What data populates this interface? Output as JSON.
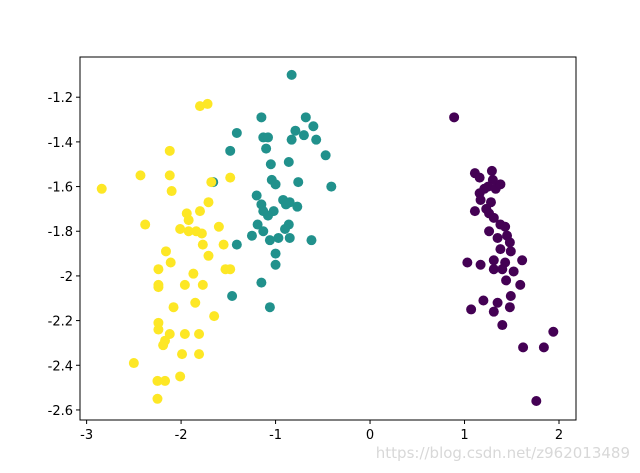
{
  "chart_data": {
    "type": "scatter",
    "xlim": [
      -3.07,
      2.18
    ],
    "ylim": [
      -2.645,
      -1.02
    ],
    "xticks": [
      -3,
      -2,
      -1,
      0,
      1,
      2
    ],
    "yticks": [
      -1.2,
      -1.4,
      -1.6,
      -1.8,
      -2.0,
      -2.2,
      -2.4,
      -2.6
    ],
    "watermark": "https://blog.csdn.net/z962013489",
    "series": [
      {
        "color": "#440154",
        "x": [
          0.89,
          1.11,
          1.16,
          1.29,
          1.3,
          1.21,
          1.25,
          1.33,
          1.16,
          1.38,
          1.17,
          1.28,
          1.11,
          1.23,
          1.26,
          1.31,
          1.38,
          1.43,
          1.26,
          1.35,
          1.45,
          1.48,
          1.38,
          1.49,
          1.31,
          1.03,
          1.17,
          1.43,
          1.61,
          1.31,
          1.4,
          1.52,
          1.44,
          1.59,
          1.49,
          1.2,
          1.35,
          1.48,
          1.07,
          1.31,
          1.4,
          1.94,
          1.62,
          1.84,
          1.76
        ],
        "y": [
          -1.29,
          -1.54,
          -1.56,
          -1.53,
          -1.57,
          -1.61,
          -1.6,
          -1.61,
          -1.63,
          -1.59,
          -1.66,
          -1.67,
          -1.71,
          -1.7,
          -1.72,
          -1.74,
          -1.77,
          -1.78,
          -1.8,
          -1.83,
          -1.82,
          -1.85,
          -1.88,
          -1.89,
          -1.93,
          -1.94,
          -1.95,
          -1.94,
          -1.93,
          -1.97,
          -1.97,
          -1.98,
          -2.02,
          -2.04,
          -2.09,
          -2.11,
          -2.12,
          -2.14,
          -2.15,
          -2.16,
          -2.22,
          -2.25,
          -2.32,
          -2.32,
          -2.56
        ]
      },
      {
        "color": "#21918c",
        "x": [
          -0.83,
          -0.68,
          -1.15,
          -0.6,
          -0.79,
          -0.7,
          -1.41,
          -0.57,
          -1.13,
          -1.08,
          -0.83,
          -1.48,
          -1.1,
          -0.47,
          -0.86,
          -1.05,
          -1.66,
          -1.04,
          -1.0,
          -0.76,
          -0.41,
          -1.2,
          -0.92,
          -0.85,
          -0.89,
          -0.77,
          -1.15,
          -1.13,
          -1.02,
          -1.08,
          -1.19,
          -0.86,
          -0.9,
          -1.13,
          -1.25,
          -0.97,
          -0.85,
          -0.62,
          -1.06,
          -1.41,
          -1.0,
          -1.0,
          -1.15,
          -1.46,
          -1.06
        ],
        "y": [
          -1.1,
          -1.29,
          -1.29,
          -1.33,
          -1.35,
          -1.37,
          -1.36,
          -1.39,
          -1.38,
          -1.38,
          -1.39,
          -1.44,
          -1.43,
          -1.46,
          -1.49,
          -1.5,
          -1.58,
          -1.57,
          -1.59,
          -1.58,
          -1.6,
          -1.64,
          -1.66,
          -1.67,
          -1.68,
          -1.69,
          -1.68,
          -1.71,
          -1.71,
          -1.73,
          -1.77,
          -1.77,
          -1.79,
          -1.8,
          -1.82,
          -1.83,
          -1.83,
          -1.84,
          -1.84,
          -1.86,
          -1.9,
          -1.95,
          -2.03,
          -2.09,
          -2.14
        ]
      },
      {
        "color": "#fde725",
        "x": [
          -1.72,
          -1.8,
          -2.12,
          -2.84,
          -2.43,
          -2.12,
          -1.48,
          -1.68,
          -2.1,
          -1.71,
          -1.8,
          -1.94,
          -1.92,
          -2.38,
          -1.6,
          -2.01,
          -1.92,
          -1.84,
          -1.78,
          -1.55,
          -1.77,
          -2.16,
          -1.71,
          -2.11,
          -2.24,
          -1.48,
          -1.87,
          -1.53,
          -2.24,
          -2.24,
          -1.96,
          -1.77,
          -1.85,
          -2.08,
          -1.65,
          -2.24,
          -2.24,
          -1.96,
          -2.12,
          -1.81,
          -2.17,
          -2.19,
          -1.99,
          -1.81,
          -2.5,
          -2.01,
          -2.25,
          -2.17,
          -2.25
        ],
        "y": [
          -1.23,
          -1.24,
          -1.44,
          -1.61,
          -1.55,
          -1.55,
          -1.56,
          -1.58,
          -1.62,
          -1.67,
          -1.71,
          -1.72,
          -1.75,
          -1.77,
          -1.78,
          -1.79,
          -1.8,
          -1.8,
          -1.81,
          -1.86,
          -1.86,
          -1.89,
          -1.91,
          -1.94,
          -1.97,
          -1.97,
          -1.99,
          -1.97,
          -2.04,
          -2.05,
          -2.04,
          -2.04,
          -2.12,
          -2.14,
          -2.18,
          -2.21,
          -2.24,
          -2.26,
          -2.26,
          -2.26,
          -2.29,
          -2.31,
          -2.35,
          -2.35,
          -2.39,
          -2.45,
          -2.47,
          -2.47,
          -2.55
        ]
      }
    ]
  }
}
